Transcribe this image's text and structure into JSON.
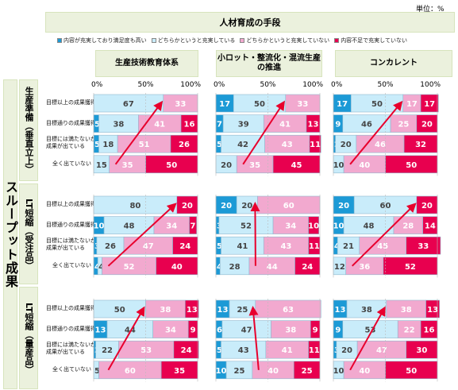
{
  "unit_label": "単位：%",
  "header": {
    "title": "人材育成の手段"
  },
  "legend": [
    {
      "label": "内容が充実しており満足度も高い",
      "color": "#1c9ad6"
    },
    {
      "label": "どちらかというと充実している",
      "color": "#c9ecfa"
    },
    {
      "label": "どちらかというと充実していない",
      "color": "#f2a9cf"
    },
    {
      "label": "内容不足で充実していない",
      "color": "#e8004f"
    }
  ],
  "sidebar_title": "スループット成果",
  "chart_data": {
    "type": "bar",
    "stacked": true,
    "orientation": "horizontal",
    "title": "人材育成の手段",
    "xlim": [
      0,
      100
    ],
    "x_ticks": [
      "0%",
      "50%",
      "100%"
    ],
    "series": [
      "内容が充実しており満足度も高い",
      "どちらかというと充実している",
      "どちらかというと充実していない",
      "内容不足で充実していない"
    ],
    "colors": [
      "#1c9ad6",
      "#c9ecfa",
      "#f2a9cf",
      "#e8004f"
    ],
    "columns": [
      "生産技術教育体系",
      "小ロット・整流化・混流生産の推進",
      "コンカレント"
    ],
    "row_labels": [
      "目標以上の成果獲得",
      "目標通りの成果獲得",
      "目標には満たないが成果が出ている",
      "全く出ていない"
    ],
    "groups": [
      {
        "title": "生産準備（垂直立上）",
        "values": [
          [
            [
              0,
              67,
              33,
              0
            ],
            [
              5,
              38,
              41,
              16
            ],
            [
              5,
              18,
              51,
              26
            ],
            [
              0,
              15,
              35,
              50
            ]
          ],
          [
            [
              17,
              50,
              33,
              0
            ],
            [
              7,
              39,
              41,
              13
            ],
            [
              5,
              42,
              43,
              11
            ],
            [
              0,
              20,
              35,
              45
            ]
          ],
          [
            [
              17,
              50,
              17,
              17
            ],
            [
              9,
              46,
              25,
              20
            ],
            [
              2,
              20,
              46,
              32
            ],
            [
              0,
              10,
              40,
              50
            ]
          ]
        ]
      },
      {
        "title": "LT短縮（受注品）",
        "values": [
          [
            [
              0,
              80,
              0,
              20
            ],
            [
              10,
              48,
              34,
              7
            ],
            [
              3,
              26,
              47,
              24
            ],
            [
              4,
              4,
              52,
              40
            ]
          ],
          [
            [
              20,
              20,
              60,
              0
            ],
            [
              3,
              52,
              34,
              10
            ],
            [
              5,
              41,
              43,
              11
            ],
            [
              4,
              28,
              44,
              24
            ]
          ],
          [
            [
              20,
              60,
              0,
              20
            ],
            [
              10,
              48,
              28,
              14
            ],
            [
              4,
              21,
              45,
              33
            ],
            [
              0,
              12,
              36,
              52
            ]
          ]
        ]
      },
      {
        "title": "LT短縮（量産品）",
        "values": [
          [
            [
              0,
              50,
              38,
              13
            ],
            [
              13,
              44,
              34,
              9
            ],
            [
              2,
              22,
              53,
              24
            ],
            [
              0,
              5,
              60,
              35
            ]
          ],
          [
            [
              13,
              25,
              63,
              0
            ],
            [
              6,
              47,
              38,
              9
            ],
            [
              5,
              43,
              41,
              11
            ],
            [
              10,
              25,
              40,
              25
            ]
          ],
          [
            [
              13,
              38,
              38,
              13
            ],
            [
              9,
              53,
              22,
              16
            ],
            [
              3,
              20,
              47,
              30
            ],
            [
              0,
              10,
              40,
              50
            ]
          ]
        ]
      }
    ]
  }
}
